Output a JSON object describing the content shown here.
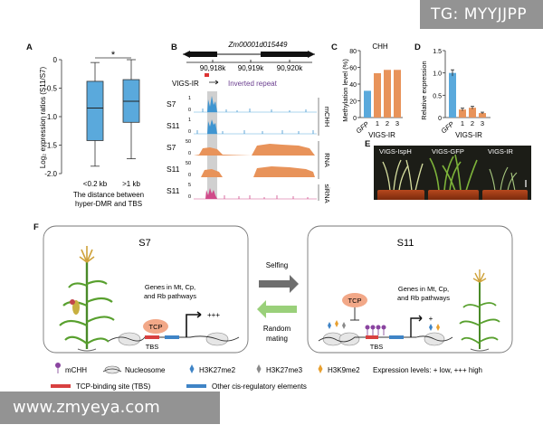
{
  "watermarks": {
    "top": "TG: MYYJJPP",
    "bottom": "www.zmyeya.com"
  },
  "panels": {
    "A": {
      "letter": "A",
      "ylabel": "Log₂ expression ratios (S11/S7)",
      "yticks": [
        "-2.0",
        "-1.5",
        "-1.0",
        "-0.5",
        "0"
      ],
      "significance": "*",
      "categories": [
        "<0.2 kb",
        ">1 kb"
      ],
      "xlabel_line1": "The distance between",
      "xlabel_line2": "hyper-DMR and TBS"
    },
    "B": {
      "letter": "B",
      "gene": "Zm00001d015449",
      "coords": [
        "90,918k",
        "90,919k",
        "90,920k"
      ],
      "vigs": "VIGS-IR",
      "inverted_repeat": "Inverted repeat",
      "tracks": [
        "S7",
        "S11",
        "S7",
        "S11",
        "S11"
      ],
      "yscale": [
        "1",
        "0",
        "1",
        "0",
        "50",
        "0",
        "50",
        "0",
        "5",
        "0"
      ],
      "group_labels": [
        "mCHH",
        "RNA",
        "siRNA"
      ]
    },
    "C": {
      "letter": "C",
      "title": "CHH",
      "ylabel": "Methylation level (%)",
      "yticks": [
        "0",
        "20",
        "40",
        "60",
        "80"
      ],
      "categories": [
        "GFP",
        "1",
        "2",
        "3"
      ],
      "group": "VIGS-IR"
    },
    "D": {
      "letter": "D",
      "ylabel": "Relative expression",
      "yticks": [
        "0",
        "0.5",
        "1.0",
        "1.5"
      ],
      "categories": [
        "GFP",
        "1",
        "2",
        "3"
      ],
      "group": "VIGS-IR"
    },
    "E": {
      "letter": "E",
      "labels": [
        "VIGS-IspH",
        "VIGS-GFP",
        "VIGS-IR"
      ]
    },
    "F": {
      "letter": "F",
      "left_title": "S7",
      "right_title": "S11",
      "genes_text_line1": "Genes in Mt, Cp,",
      "genes_text_line2": "and Rb pathways",
      "right_genes_line1": "Genes in Mt, Cp,",
      "right_genes_line2": "and Rb pathways",
      "tcp": "TCP",
      "tbs": "TBS",
      "left_expr": "+++",
      "right_expr": "+",
      "selfing": "Selfing",
      "random_line1": "Random",
      "random_line2": "mating"
    }
  },
  "legend": {
    "mchh": "mCHH",
    "nucleosome": "Nucleosome",
    "h3k27me2": "H3K27me2",
    "h3k27me3": "H3K27me3",
    "h3k9me2": "H3K9me2",
    "expression": "Expression levels: + low, +++ high",
    "tbs_site": "TCP-binding site (TBS)",
    "cis": "Other cis-regulatory elements"
  },
  "chart_data": [
    {
      "type": "boxplot",
      "panel": "A",
      "ylabel": "Log₂ expression ratios (S11/S7)",
      "ylim": [
        -2.0,
        0.0
      ],
      "categories": [
        "<0.2 kb",
        ">1 kb"
      ],
      "boxes": [
        {
          "category": "<0.2 kb",
          "whisker_low": -1.87,
          "q1": -1.42,
          "median": -0.85,
          "q3": -0.38,
          "whisker_high": -0.05
        },
        {
          "category": ">1 kb",
          "whisker_low": -1.74,
          "q1": -1.1,
          "median": -0.73,
          "q3": -0.35,
          "whisker_high": 0.0
        }
      ],
      "significance": "*",
      "color": "#5aa9dc"
    },
    {
      "type": "bar",
      "panel": "C",
      "title": "CHH",
      "ylabel": "Methylation level (%)",
      "ylim": [
        0,
        80
      ],
      "categories": [
        "GFP",
        "1",
        "2",
        "3"
      ],
      "values": [
        32,
        53,
        57,
        57
      ],
      "colors": [
        "#5aa9dc",
        "#e8935a",
        "#e8935a",
        "#e8935a"
      ]
    },
    {
      "type": "bar",
      "panel": "D",
      "ylabel": "Relative expression",
      "ylim": [
        0,
        1.5
      ],
      "categories": [
        "GFP",
        "1",
        "2",
        "3"
      ],
      "values": [
        1.0,
        0.18,
        0.22,
        0.1
      ],
      "errors": [
        0.07,
        0.03,
        0.03,
        0.02
      ],
      "colors": [
        "#5aa9dc",
        "#e8935a",
        "#e8935a",
        "#e8935a"
      ]
    }
  ]
}
